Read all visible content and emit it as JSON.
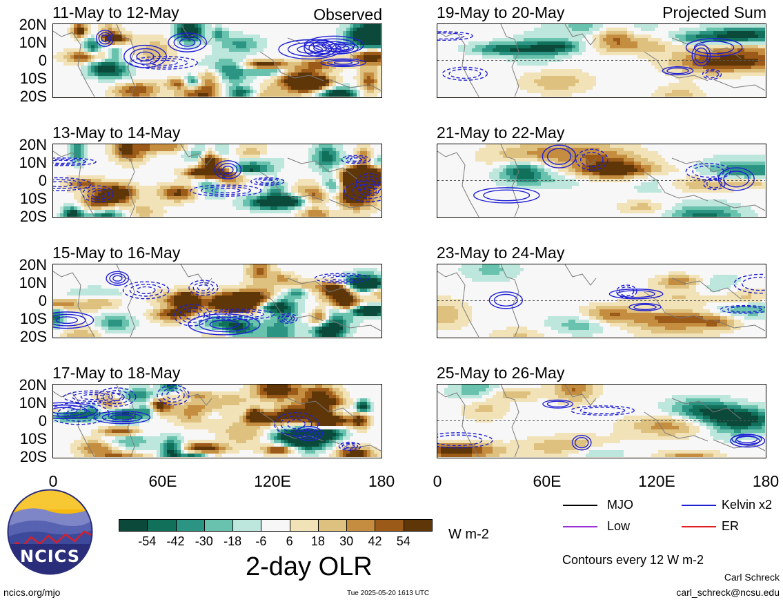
{
  "left_column": {
    "corner_label": "Observed",
    "panels": [
      {
        "title": "11-May to 12-May"
      },
      {
        "title": "13-May to 14-May"
      },
      {
        "title": "15-May to 16-May"
      },
      {
        "title": "17-May to 18-May"
      }
    ]
  },
  "right_column": {
    "corner_label": "Projected Sum",
    "panels": [
      {
        "title": "19-May to 20-May"
      },
      {
        "title": "21-May to 22-May"
      },
      {
        "title": "23-May to 24-May"
      },
      {
        "title": "25-May to 26-May"
      }
    ]
  },
  "y_ticks": [
    "20N",
    "10N",
    "0",
    "10S",
    "20S"
  ],
  "x_ticks": [
    "0",
    "60E",
    "120E",
    "180"
  ],
  "colorbar": {
    "ticks": [
      "-54",
      "-42",
      "-30",
      "-18",
      "-6",
      "6",
      "18",
      "30",
      "42",
      "54"
    ],
    "colors": [
      "#0b4a3a",
      "#11705a",
      "#2c9483",
      "#68c2ad",
      "#bde6dc",
      "#f7f7f7",
      "#f1e2b8",
      "#dfc17f",
      "#c58d3f",
      "#9c5a18",
      "#5e3608"
    ],
    "units": "W m-2",
    "title": "2-day OLR"
  },
  "legend": {
    "items": [
      {
        "label": "MJO",
        "color": "#000000"
      },
      {
        "label": "Kelvin x2",
        "color": "#1f1fd6"
      },
      {
        "label": "Low",
        "color": "#9b30d9"
      },
      {
        "label": "ER",
        "color": "#e02020"
      }
    ],
    "note": "Contours every 12 W m-2"
  },
  "logo": {
    "text": "NCICS"
  },
  "footer": {
    "left": "ncics.org/mjo",
    "center": "Tue 2025-05-20 1613 UTC",
    "right_name": "Carl Schreck",
    "right_email": "carl_schreck@ncsu.edu"
  },
  "chart_data": [
    {
      "type": "heatmap",
      "title": "11-May to 12-May",
      "field": "2-day OLR anomaly",
      "units": "W m-2",
      "xlim": [
        0,
        180
      ],
      "ylim": [
        -20,
        20
      ],
      "x_ticks": [
        "0",
        "60E",
        "120E",
        "180"
      ],
      "y_ticks": [
        "20N",
        "10N",
        "0",
        "10S",
        "20S"
      ],
      "levels": [
        -54,
        -42,
        -30,
        -18,
        -6,
        6,
        18,
        30,
        42,
        54
      ],
      "contours": [
        "Kelvin x2"
      ]
    },
    {
      "type": "heatmap",
      "title": "13-May to 14-May",
      "field": "2-day OLR anomaly",
      "units": "W m-2",
      "xlim": [
        0,
        180
      ],
      "ylim": [
        -20,
        20
      ],
      "levels": [
        -54,
        -42,
        -30,
        -18,
        -6,
        6,
        18,
        30,
        42,
        54
      ],
      "contours": [
        "Kelvin x2"
      ]
    },
    {
      "type": "heatmap",
      "title": "15-May to 16-May",
      "field": "2-day OLR anomaly",
      "units": "W m-2",
      "xlim": [
        0,
        180
      ],
      "ylim": [
        -20,
        20
      ],
      "levels": [
        -54,
        -42,
        -30,
        -18,
        -6,
        6,
        18,
        30,
        42,
        54
      ],
      "contours": [
        "Kelvin x2"
      ]
    },
    {
      "type": "heatmap",
      "title": "17-May to 18-May",
      "field": "2-day OLR anomaly",
      "units": "W m-2",
      "xlim": [
        0,
        180
      ],
      "ylim": [
        -20,
        20
      ],
      "levels": [
        -54,
        -42,
        -30,
        -18,
        -6,
        6,
        18,
        30,
        42,
        54
      ],
      "contours": [
        "Kelvin x2"
      ]
    },
    {
      "type": "heatmap",
      "title": "19-May to 20-May",
      "field": "Projected Sum",
      "units": "W m-2",
      "xlim": [
        0,
        180
      ],
      "ylim": [
        -20,
        20
      ],
      "levels": [
        -54,
        -42,
        -30,
        -18,
        -6,
        6,
        18,
        30,
        42,
        54
      ],
      "contours": [
        "Kelvin x2"
      ]
    },
    {
      "type": "heatmap",
      "title": "21-May to 22-May",
      "field": "Projected Sum",
      "units": "W m-2",
      "xlim": [
        0,
        180
      ],
      "ylim": [
        -20,
        20
      ],
      "levels": [
        -54,
        -42,
        -30,
        -18,
        -6,
        6,
        18,
        30,
        42,
        54
      ],
      "contours": [
        "Kelvin x2"
      ]
    },
    {
      "type": "heatmap",
      "title": "23-May to 24-May",
      "field": "Projected Sum",
      "units": "W m-2",
      "xlim": [
        0,
        180
      ],
      "ylim": [
        -20,
        20
      ],
      "levels": [
        -54,
        -42,
        -30,
        -18,
        -6,
        6,
        18,
        30,
        42,
        54
      ],
      "contours": [
        "Kelvin x2"
      ]
    },
    {
      "type": "heatmap",
      "title": "25-May to 26-May",
      "field": "Projected Sum",
      "units": "W m-2",
      "xlim": [
        0,
        180
      ],
      "ylim": [
        -20,
        20
      ],
      "levels": [
        -54,
        -42,
        -30,
        -18,
        -6,
        6,
        18,
        30,
        42,
        54
      ],
      "contours": [
        "Kelvin x2"
      ]
    }
  ]
}
